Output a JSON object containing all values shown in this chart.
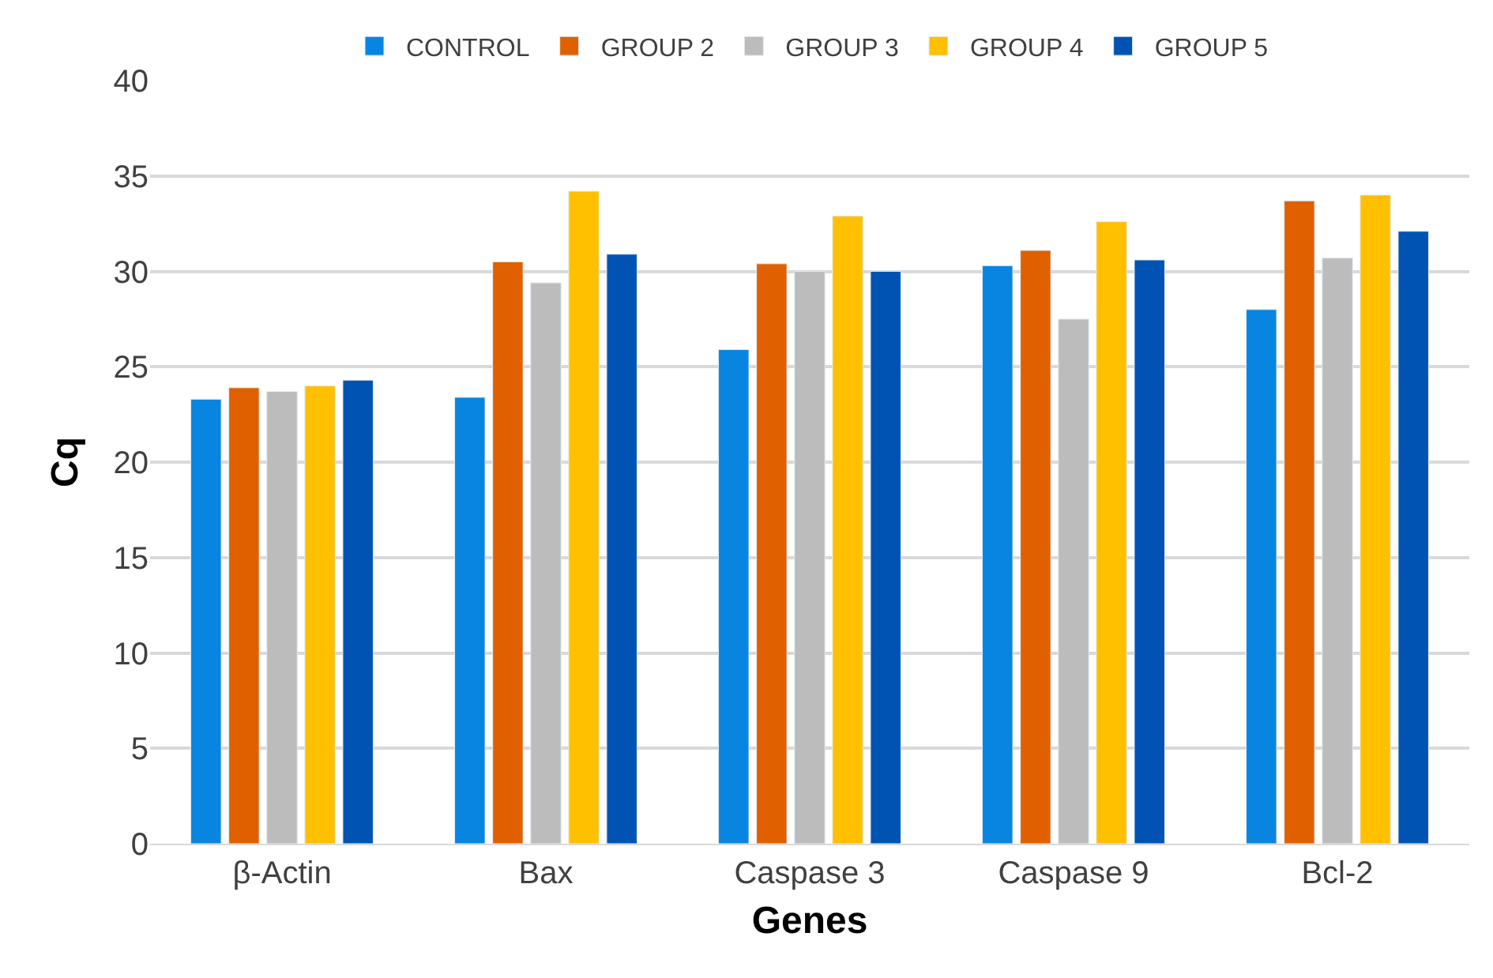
{
  "chart_data": {
    "type": "bar",
    "xlabel": "Genes",
    "ylabel": "Cq",
    "categories": [
      "β-Actin",
      "Bax",
      "Caspase 3",
      "Caspase 9",
      "Bcl-2"
    ],
    "series": [
      {
        "name": "CONTROL",
        "color": "#0785e0",
        "values": [
          23.3,
          23.4,
          25.9,
          30.3,
          28.0
        ]
      },
      {
        "name": "GROUP 2",
        "color": "#e06000",
        "values": [
          23.9,
          30.5,
          30.4,
          31.1,
          33.7
        ]
      },
      {
        "name": "GROUP 3",
        "color": "#bcbcbc",
        "values": [
          23.7,
          29.4,
          30.0,
          27.5,
          30.7
        ]
      },
      {
        "name": "GROUP 4",
        "color": "#ffc000",
        "values": [
          24.0,
          34.2,
          32.9,
          32.6,
          34.0
        ]
      },
      {
        "name": "GROUP 5",
        "color": "#0053b3",
        "values": [
          24.3,
          30.9,
          30.0,
          30.6,
          32.1
        ]
      }
    ],
    "ylim": [
      0,
      40
    ],
    "yticks": [
      0,
      5,
      10,
      15,
      20,
      25,
      30,
      35,
      40
    ],
    "grid": "y",
    "legend": "top"
  }
}
